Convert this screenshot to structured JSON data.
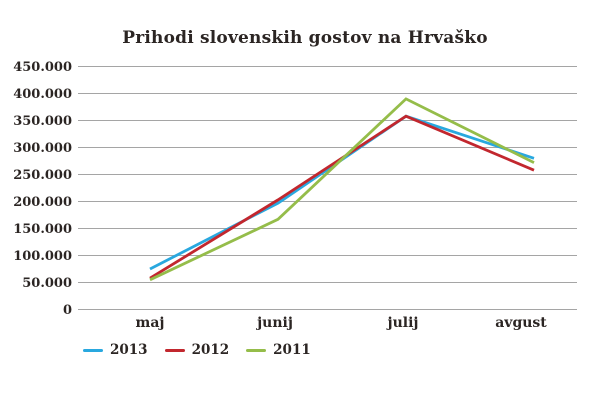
{
  "chart_data": {
    "type": "line",
    "title": "Prihodi slovenskih gostov na Hrvaško",
    "categories": [
      "maj",
      "junij",
      "julij",
      "avgust"
    ],
    "series": [
      {
        "name": "2013",
        "color": "#29a8df",
        "values": [
          75000,
          197000,
          358000,
          280000
        ]
      },
      {
        "name": "2012",
        "color": "#c2272e",
        "values": [
          58000,
          203000,
          358000,
          258000
        ]
      },
      {
        "name": "2011",
        "color": "#95bd4a",
        "values": [
          55000,
          167000,
          390000,
          272000
        ]
      }
    ],
    "ylim": [
      0,
      450000
    ],
    "ytick_step": 50000,
    "ytick_labels": [
      "0",
      "50.000",
      "100.000",
      "150.000",
      "200.000",
      "250.000",
      "300.000",
      "350.000",
      "400.000",
      "450.000"
    ],
    "xlabel": "",
    "ylabel": "",
    "grid": "horizontal",
    "gridline_color": "#a5a5a5",
    "text_color": "#2b2523",
    "legend_position": "bottom-left",
    "legend_entries": [
      "2013",
      "2012",
      "2011"
    ]
  }
}
